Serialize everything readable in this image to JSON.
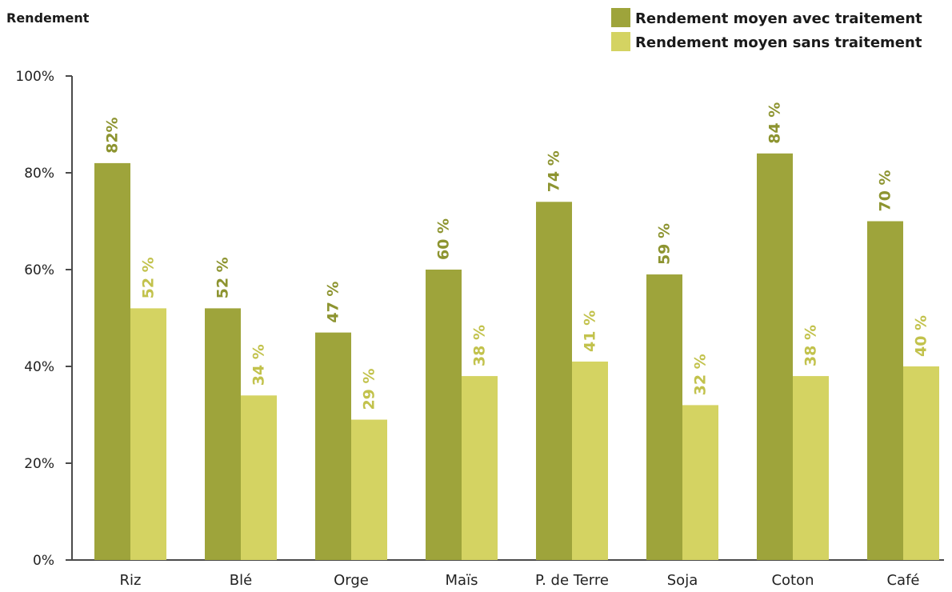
{
  "chart_data": {
    "type": "bar",
    "ylabel": "Rendement",
    "xlabel": "",
    "ylim": [
      0,
      100
    ],
    "yticks": [
      "0%",
      "20%",
      "40%",
      "60%",
      "80%",
      "100%"
    ],
    "categories": [
      "Riz",
      "Blé",
      "Orge",
      "Maïs",
      "P. de Terre",
      "Soja",
      "Coton",
      "Café"
    ],
    "series": [
      {
        "name": "Rendement moyen avec traitement",
        "color": "#9ea43b",
        "label_color": "#8d9430",
        "values": [
          82,
          52,
          47,
          60,
          74,
          59,
          84,
          70
        ],
        "labels": [
          "82%",
          "52 %",
          "47 %",
          "60 %",
          "74 %",
          "59 %",
          "84 %",
          "70 %"
        ]
      },
      {
        "name": "Rendement moyen sans traitement",
        "color": "#d4d362",
        "label_color": "#c2c24c",
        "values": [
          52,
          34,
          29,
          38,
          41,
          32,
          38,
          40
        ],
        "labels": [
          "52 %",
          "34 %",
          "29 %",
          "38 %",
          "41 %",
          "32 %",
          "38 %",
          "40 %"
        ]
      }
    ],
    "grid": false,
    "legend_position": "top-right"
  }
}
